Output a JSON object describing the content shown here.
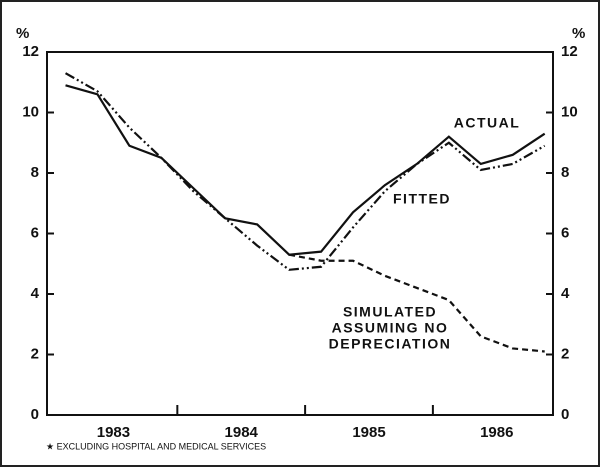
{
  "chart_data": {
    "type": "line",
    "y_unit": "%",
    "footnote": "★ EXCLUDING HOSPITAL AND MEDICAL SERVICES",
    "x": [
      1983.125,
      1983.375,
      1983.625,
      1983.875,
      1984.125,
      1984.375,
      1984.625,
      1984.875,
      1985.125,
      1985.375,
      1985.625,
      1985.875,
      1986.125,
      1986.375,
      1986.625,
      1986.875
    ],
    "xlim": [
      1982.98,
      1986.94
    ],
    "xticks": [
      {
        "value": 1983.5,
        "label": "1983"
      },
      {
        "value": 1984.5,
        "label": "1984"
      },
      {
        "value": 1985.5,
        "label": "1985"
      },
      {
        "value": 1986.5,
        "label": "1986"
      }
    ],
    "xminor": [
      1984,
      1985,
      1986
    ],
    "ylim": [
      0,
      12
    ],
    "yticks": [
      0,
      2,
      4,
      6,
      8,
      10,
      12
    ],
    "series": [
      {
        "name": "ACTUAL",
        "color": "#111",
        "dash": "none",
        "values": [
          10.9,
          10.6,
          8.9,
          8.5,
          7.5,
          6.5,
          6.3,
          5.3,
          5.4,
          6.7,
          7.6,
          8.3,
          9.2,
          8.3,
          8.6,
          9.3
        ]
      },
      {
        "name": "FITTED",
        "color": "#111",
        "dash": "10 3 2 3 2 3",
        "values": [
          11.3,
          10.7,
          9.5,
          8.5,
          7.4,
          6.5,
          5.6,
          4.8,
          4.9,
          6.2,
          7.4,
          8.3,
          9.0,
          8.1,
          8.3,
          8.9
        ]
      },
      {
        "name": [
          "SIMULATED",
          "ASSUMING NO",
          "DEPRECIATION"
        ],
        "color": "#111",
        "dash": "6 4",
        "values": [
          null,
          null,
          null,
          null,
          null,
          null,
          null,
          5.3,
          5.1,
          5.1,
          4.6,
          4.2,
          3.8,
          2.6,
          2.2,
          2.1
        ]
      }
    ]
  }
}
